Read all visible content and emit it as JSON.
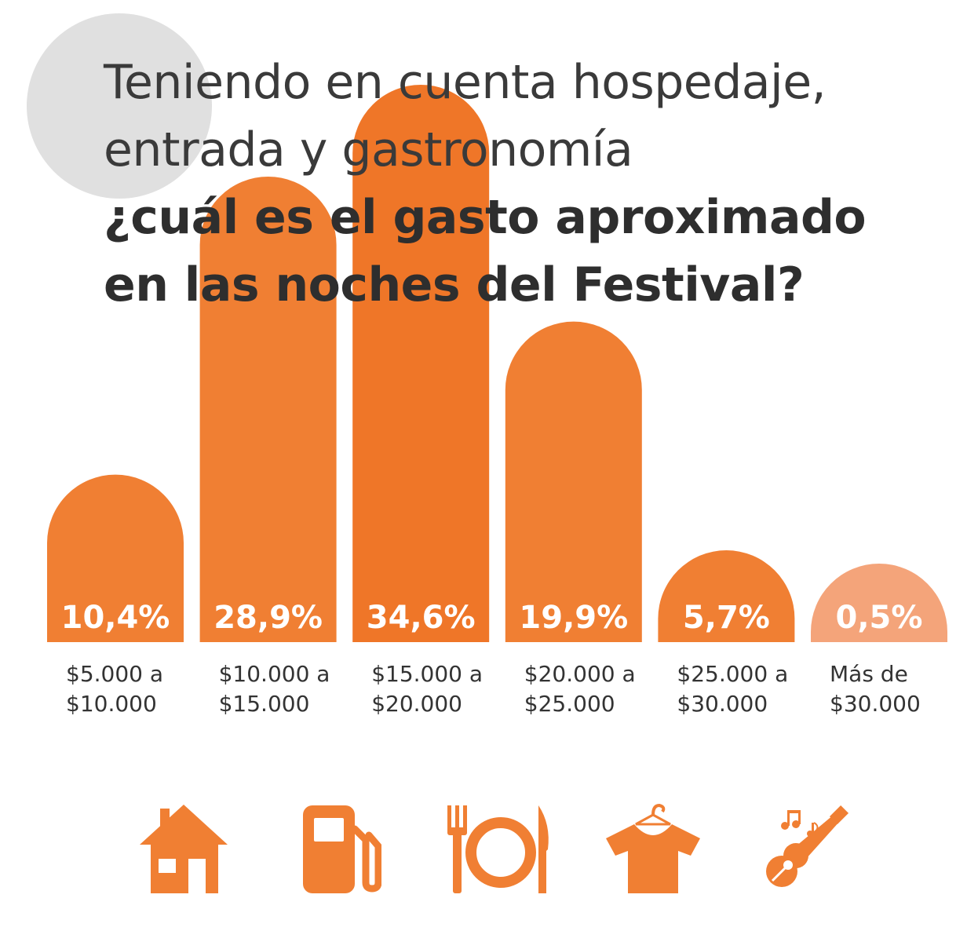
{
  "title": {
    "line1": "Teniendo en cuenta hospedaje,",
    "line2": "entrada y gastronomía",
    "line3": "¿cuál es el gasto aproximado",
    "line4": "en las noches del Festival?"
  },
  "chart_data": {
    "type": "bar",
    "categories": [
      [
        "$5.000 a",
        "$10.000"
      ],
      [
        "$10.000 a",
        "$15.000"
      ],
      [
        "$15.000 a",
        "$20.000"
      ],
      [
        "$20.000 a",
        "$25.000"
      ],
      [
        "$25.000 a",
        "$30.000"
      ],
      [
        "Más de",
        "$30.000"
      ]
    ],
    "values": [
      10.4,
      28.9,
      34.6,
      19.9,
      5.7,
      0.5
    ],
    "data_labels": [
      "10,4%",
      "28,9%",
      "34,6%",
      "19,9%",
      "5,7%",
      "0,5%"
    ],
    "bar_colors": [
      "#f07f33",
      "#f07f33",
      "#ef7628",
      "#f07f33",
      "#f07f33",
      "#f4a47a"
    ],
    "grid": false,
    "legend": "none"
  },
  "icons": [
    "house-icon",
    "fuel-pump-icon",
    "fork-plate-knife-icon",
    "tshirt-on-hanger-icon",
    "guitar-music-icon"
  ],
  "colors": {
    "accent": "#f07f33",
    "accent_light": "#f4a47a",
    "text": "#333333",
    "deco": "#e0e0e0"
  }
}
